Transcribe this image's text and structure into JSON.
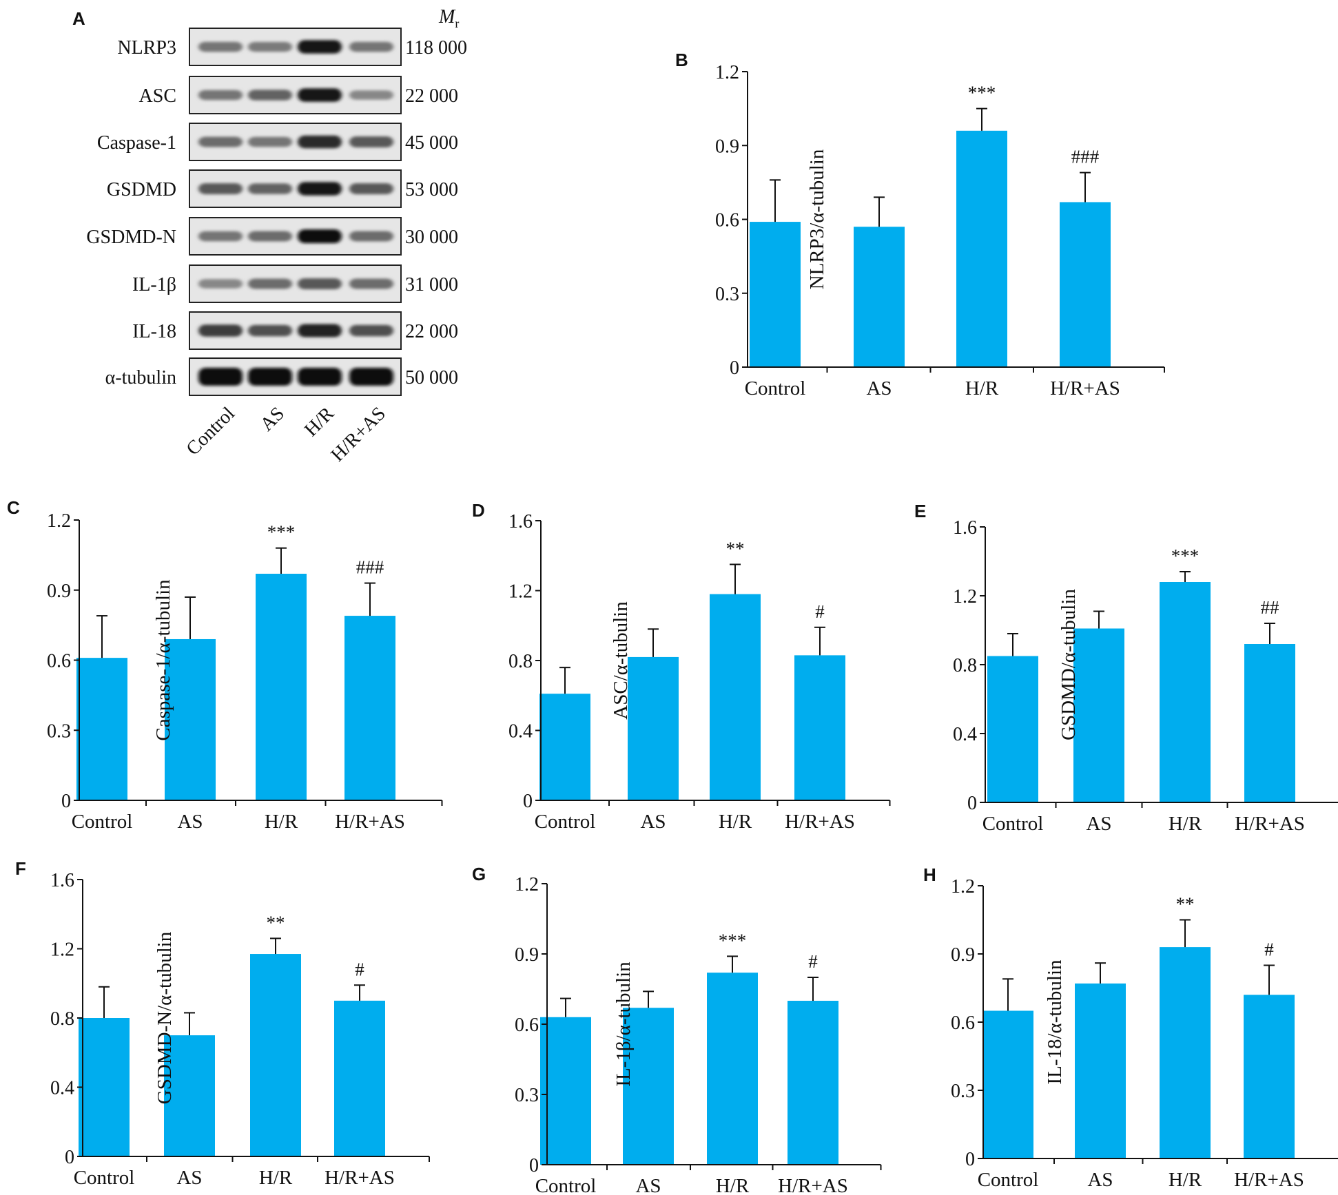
{
  "colors": {
    "bar": "#00adee",
    "axis": "#000000",
    "text": "#111111"
  },
  "blot": {
    "panel_letter": "A",
    "mr_label": "M",
    "mr_sub": "r",
    "proteins": [
      {
        "name": "NLRP3",
        "mr": "118 000",
        "intensity": [
          0.45,
          0.42,
          0.95,
          0.45
        ]
      },
      {
        "name": "ASC",
        "mr": "22 000",
        "intensity": [
          0.45,
          0.55,
          0.95,
          0.35
        ]
      },
      {
        "name": "Caspase-1",
        "mr": "45 000",
        "intensity": [
          0.5,
          0.45,
          0.85,
          0.6
        ]
      },
      {
        "name": "GSDMD",
        "mr": "53 000",
        "intensity": [
          0.6,
          0.55,
          0.95,
          0.6
        ]
      },
      {
        "name": "GSDMD-N",
        "mr": "30 000",
        "intensity": [
          0.45,
          0.5,
          1.0,
          0.5
        ]
      },
      {
        "name": "IL-1β",
        "mr": "31 000",
        "intensity": [
          0.35,
          0.5,
          0.6,
          0.5
        ]
      },
      {
        "name": "IL-18",
        "mr": "22 000",
        "intensity": [
          0.75,
          0.65,
          0.9,
          0.65
        ]
      },
      {
        "name": "α-tubulin",
        "mr": "50 000",
        "intensity": [
          1.0,
          1.0,
          1.0,
          1.0
        ]
      }
    ],
    "lanes": [
      "Control",
      "AS",
      "H/R",
      "H/R+AS"
    ]
  },
  "chart_data": [
    {
      "panel": "B",
      "type": "bar",
      "categories": [
        "Control",
        "AS",
        "H/R",
        "H/R+AS"
      ],
      "values": [
        0.59,
        0.57,
        0.96,
        0.67
      ],
      "errors": [
        0.17,
        0.12,
        0.09,
        0.12
      ],
      "annotations": [
        "",
        "",
        "***",
        "###"
      ],
      "ylabel": "NLRP3/α-tubulin",
      "ylim": [
        0,
        1.2
      ],
      "yticks": [
        "0",
        "0.3",
        "0.6",
        "0.9",
        "1.2"
      ]
    },
    {
      "panel": "C",
      "type": "bar",
      "categories": [
        "Control",
        "AS",
        "H/R",
        "H/R+AS"
      ],
      "values": [
        0.61,
        0.69,
        0.97,
        0.79
      ],
      "errors": [
        0.18,
        0.18,
        0.11,
        0.14
      ],
      "annotations": [
        "",
        "",
        "***",
        "###"
      ],
      "ylabel": "Caspase-1/α-tubulin",
      "ylim": [
        0,
        1.2
      ],
      "yticks": [
        "0",
        "0.3",
        "0.6",
        "0.9",
        "1.2"
      ]
    },
    {
      "panel": "D",
      "type": "bar",
      "categories": [
        "Control",
        "AS",
        "H/R",
        "H/R+AS"
      ],
      "values": [
        0.61,
        0.82,
        1.18,
        0.83
      ],
      "errors": [
        0.15,
        0.16,
        0.17,
        0.16
      ],
      "annotations": [
        "",
        "",
        "**",
        "#"
      ],
      "ylabel": "ASC/α-tubulin",
      "ylim": [
        0,
        1.6
      ],
      "yticks": [
        "0",
        "0.4",
        "0.8",
        "1.2",
        "1.6"
      ]
    },
    {
      "panel": "E",
      "type": "bar",
      "categories": [
        "Control",
        "AS",
        "H/R",
        "H/R+AS"
      ],
      "values": [
        0.85,
        1.01,
        1.28,
        0.92
      ],
      "errors": [
        0.13,
        0.1,
        0.06,
        0.12
      ],
      "annotations": [
        "",
        "",
        "***",
        "##"
      ],
      "ylabel": "GSDMD/α-tubulin",
      "ylim": [
        0,
        1.6
      ],
      "yticks": [
        "0",
        "0.4",
        "0.8",
        "1.2",
        "1.6"
      ]
    },
    {
      "panel": "F",
      "type": "bar",
      "categories": [
        "Control",
        "AS",
        "H/R",
        "H/R+AS"
      ],
      "values": [
        0.8,
        0.7,
        1.17,
        0.9
      ],
      "errors": [
        0.18,
        0.13,
        0.09,
        0.09
      ],
      "annotations": [
        "",
        "",
        "**",
        "#"
      ],
      "ylabel": "GSDMD-N/α-tubulin",
      "ylim": [
        0,
        1.6
      ],
      "yticks": [
        "0",
        "0.4",
        "0.8",
        "1.2",
        "1.6"
      ]
    },
    {
      "panel": "G",
      "type": "bar",
      "categories": [
        "Control",
        "AS",
        "H/R",
        "H/R+AS"
      ],
      "values": [
        0.63,
        0.67,
        0.82,
        0.7
      ],
      "errors": [
        0.08,
        0.07,
        0.07,
        0.1
      ],
      "annotations": [
        "",
        "",
        "***",
        "#"
      ],
      "ylabel": "IL-1β/α-tubulin",
      "ylim": [
        0,
        1.2
      ],
      "yticks": [
        "0",
        "0.3",
        "0.6",
        "0.9",
        "1.2"
      ]
    },
    {
      "panel": "H",
      "type": "bar",
      "categories": [
        "Control",
        "AS",
        "H/R",
        "H/R+AS"
      ],
      "values": [
        0.65,
        0.77,
        0.93,
        0.72
      ],
      "errors": [
        0.14,
        0.09,
        0.12,
        0.13
      ],
      "annotations": [
        "",
        "",
        "**",
        "#"
      ],
      "ylabel": "IL-18/α-tubulin",
      "ylim": [
        0,
        1.2
      ],
      "yticks": [
        "0",
        "0.3",
        "0.6",
        "0.9",
        "1.2"
      ]
    }
  ]
}
